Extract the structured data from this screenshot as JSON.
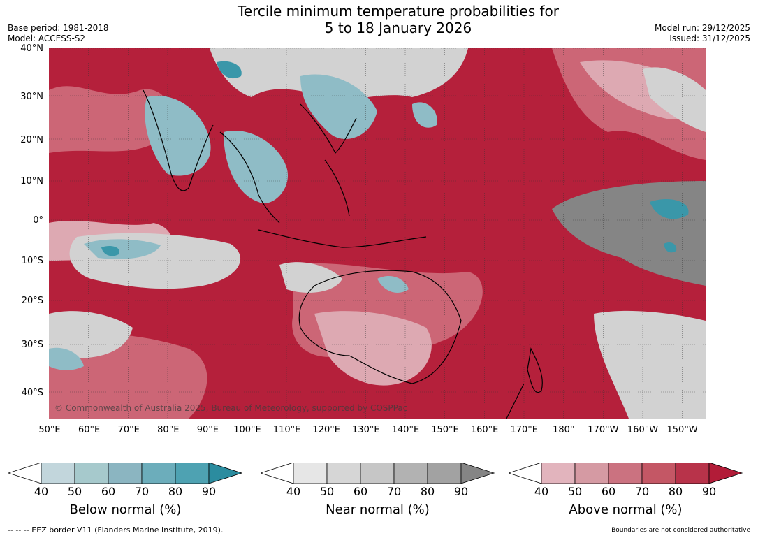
{
  "header": {
    "title_line1": "Tercile minimum temperature probabilities for",
    "title_line2": "5 to 18 January 2026",
    "base_period": "Base period: 1981-2018",
    "model": "Model: ACCESS-S2",
    "model_run": "Model run: 29/12/2025",
    "issued": "Issued: 31/12/2025"
  },
  "map": {
    "lat_labels": [
      "40°N",
      "30°N",
      "20°N",
      "10°N",
      "0°",
      "10°S",
      "20°S",
      "30°S",
      "40°S"
    ],
    "lon_labels": [
      "50°E",
      "60°E",
      "70°E",
      "80°E",
      "90°E",
      "100°E",
      "110°E",
      "120°E",
      "130°E",
      "140°E",
      "150°E",
      "160°E",
      "170°E",
      "180°",
      "170°W",
      "160°W",
      "150°W"
    ],
    "copyright": "© Commonwealth of Australia 2025, Bureau of Meteorology, supported by COSPPac",
    "dominant_category": "Above normal"
  },
  "legend": {
    "ticks": [
      "40",
      "50",
      "60",
      "70",
      "80",
      "90"
    ],
    "below": {
      "label": "Below normal (%)",
      "colors": [
        "#c2d6dc",
        "#a6c9cc",
        "#8bb5c1",
        "#6cadbb",
        "#4ea2b2",
        "#2b8c9f"
      ]
    },
    "near": {
      "label": "Near normal (%)",
      "colors": [
        "#e6e6e6",
        "#d6d6d6",
        "#c6c6c6",
        "#b2b2b2",
        "#a2a2a2",
        "#858585"
      ]
    },
    "above": {
      "label": "Above normal (%)",
      "colors": [
        "#e2b4bd",
        "#d59aa3",
        "#cb7280",
        "#c45765",
        "#b8334a",
        "#b21c38"
      ]
    }
  },
  "footer": {
    "eez_note": "--  --  -- EEZ border V11 (Flanders Marine Institute, 2019).",
    "disclaimer": "Boundaries are not considered authoritative"
  }
}
